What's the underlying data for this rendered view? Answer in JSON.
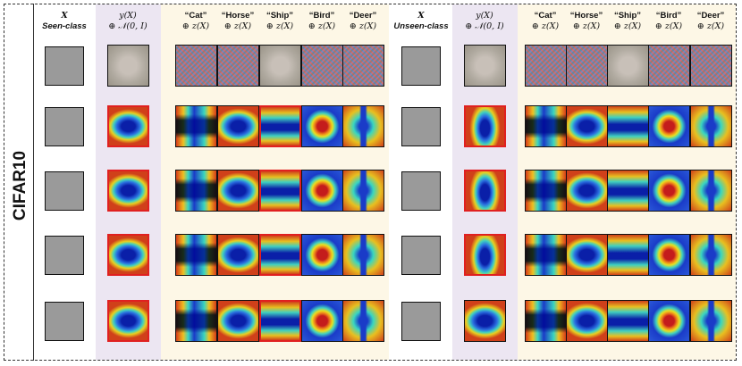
{
  "side_label": "CIFAR10",
  "headers": {
    "seen_x": {
      "line1": "X",
      "line2": "Seen-class"
    },
    "seen_y": {
      "line1": "y(X)",
      "line2": "⊕ 𝒩(0, I)"
    },
    "unseen_x": {
      "line1": "X",
      "line2": "Unseen-class"
    },
    "unseen_y": {
      "line1": "y(X)",
      "line2": "⊕ 𝒩(0, I)"
    },
    "classes": [
      {
        "name": "“Cat”",
        "op": "⊕ z(X)"
      },
      {
        "name": "“Horse”",
        "op": "⊕ z(X)"
      },
      {
        "name": "“Ship”",
        "op": "⊕ z(X)"
      },
      {
        "name": "“Bird”",
        "op": "⊕ z(X)"
      },
      {
        "name": "“Deer”",
        "op": "⊕ z(X)"
      }
    ]
  },
  "colors": {
    "purple_band": "#ece6f2",
    "yellow_band": "#fdf7e6",
    "highlight": "#e02020",
    "border": "#111111"
  },
  "seen_images": [
    "boat",
    "boat",
    "ferry",
    "cargo-ship",
    "tugboat"
  ],
  "unseen_images": [
    "airplane",
    "airplane",
    "jet",
    "stealth-bomber",
    "biplane"
  ],
  "highlighted_class": "“Ship”"
}
